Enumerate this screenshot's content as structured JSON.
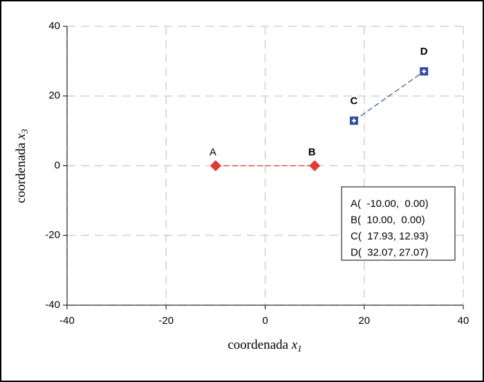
{
  "chart_data": {
    "type": "scatter",
    "xlabel": {
      "text": "coordenada",
      "symbol": "x",
      "subscript": "1"
    },
    "ylabel": {
      "text": "coordenada",
      "symbol": "x",
      "subscript": "3"
    },
    "xlim": [
      -40,
      40
    ],
    "xticks": [
      -40,
      -20,
      0,
      20,
      40
    ],
    "ylim": [
      -40,
      40
    ],
    "yticks": [
      -40,
      -20,
      0,
      20,
      40
    ],
    "grid": true,
    "series": [
      {
        "color": "#e03c31",
        "marker": "diamond",
        "x": [
          -10,
          10
        ],
        "values": [
          0,
          0
        ],
        "point_labels": [
          "A",
          "B"
        ]
      },
      {
        "color": "#2e4f9e",
        "marker": "square",
        "x": [
          17.93,
          32.07
        ],
        "values": [
          12.93,
          27.07
        ],
        "point_labels": [
          "C",
          "D"
        ]
      }
    ],
    "annotations": [
      "A(  -10.00,  0.00)",
      "B(  10.00,  0.00)",
      "C(  17.93, 12.93)",
      "D(  32.07, 27.07)"
    ]
  }
}
